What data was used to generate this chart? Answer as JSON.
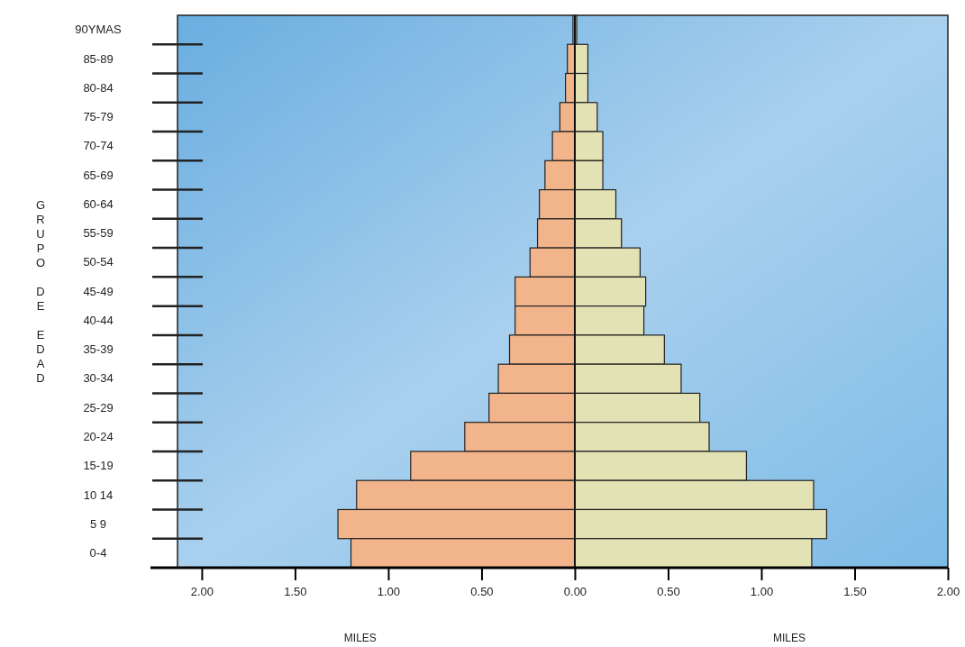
{
  "chart_data": {
    "type": "bar",
    "orientation": "horizontal",
    "xlabel": "MILES",
    "ylabel": "GRUPO DE EDAD",
    "categories": [
      "90YMAS",
      "85-89",
      "80-84",
      "75-79",
      "70-74",
      "65-69",
      "60-64",
      "55-59",
      "50-54",
      "45-49",
      "40-44",
      "35-39",
      "30-34",
      "25-29",
      "20-24",
      "15-19",
      "10 14",
      "5 9",
      "0-4"
    ],
    "series": [
      {
        "color": "#f2b48a",
        "values": [
          -0.01,
          -0.04,
          -0.05,
          -0.08,
          -0.12,
          -0.16,
          -0.19,
          -0.2,
          -0.24,
          -0.32,
          -0.32,
          -0.35,
          -0.41,
          -0.46,
          -0.59,
          -0.88,
          -1.17,
          -1.27,
          -1.2
        ]
      },
      {
        "color": "#e2e2b4",
        "values": [
          0.01,
          0.07,
          0.07,
          0.12,
          0.15,
          0.15,
          0.22,
          0.25,
          0.35,
          0.38,
          0.37,
          0.48,
          0.57,
          0.67,
          0.72,
          0.92,
          1.28,
          1.35,
          1.27
        ]
      }
    ],
    "xlim": [
      -2.13,
      2.0
    ],
    "xticks": [
      {
        "value": -2,
        "label": "2.00"
      },
      {
        "value": -1.5,
        "label": "1.50"
      },
      {
        "value": -1,
        "label": "1.00"
      },
      {
        "value": -0.5,
        "label": "0.50"
      },
      {
        "value": 0,
        "label": "0.00"
      },
      {
        "value": 0.5,
        "label": "0.50"
      },
      {
        "value": 1,
        "label": "1.00"
      },
      {
        "value": 1.5,
        "label": "1.50"
      },
      {
        "value": 2,
        "label": "2.00"
      }
    ],
    "ref_lines": [
      {
        "axis": "x",
        "value": 0,
        "color": "#111111"
      }
    ],
    "stacked": true,
    "grid": false
  }
}
